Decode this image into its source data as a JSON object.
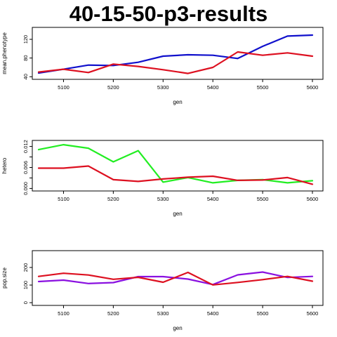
{
  "page": {
    "title": "40-15-50-p3-results"
  },
  "chart_data": [
    {
      "type": "line",
      "xlabel": "gen",
      "ylabel": "mean.phenotype",
      "xlim": [
        5050,
        5600
      ],
      "ylim": [
        40,
        140
      ],
      "x_ticks": [
        5100,
        5200,
        5300,
        5400,
        5500,
        5600
      ],
      "y_ticks": [
        40,
        80,
        120
      ],
      "x": [
        5050,
        5100,
        5150,
        5200,
        5250,
        5300,
        5350,
        5400,
        5450,
        5500,
        5550,
        5600
      ],
      "series": [
        {
          "color": "#1010cc",
          "values": [
            48,
            56,
            65,
            64,
            71,
            84,
            87,
            86,
            79,
            105,
            127,
            129
          ]
        },
        {
          "color": "#dd1020",
          "values": [
            50,
            56,
            49,
            67,
            62,
            55,
            47,
            60,
            93,
            86,
            91,
            84
          ]
        }
      ]
    },
    {
      "type": "line",
      "xlabel": "gen",
      "ylabel": "hetero",
      "xlim": [
        5050,
        5600
      ],
      "ylim": [
        0,
        0.013
      ],
      "x_ticks": [
        5100,
        5200,
        5300,
        5400,
        5500,
        5600
      ],
      "y_ticks": [
        0.0,
        0.003,
        0.006,
        0.009,
        0.012
      ],
      "y_tick_labels": [
        "0.000",
        "0.006",
        "0.012"
      ],
      "x": [
        5050,
        5100,
        5150,
        5200,
        5250,
        5300,
        5350,
        5400,
        5450,
        5500,
        5550,
        5600
      ],
      "series": [
        {
          "color": "#22ee22",
          "values": [
            0.0111,
            0.0125,
            0.0115,
            0.0076,
            0.0108,
            0.0018,
            0.0031,
            0.0016,
            0.0023,
            0.0025,
            0.0016,
            0.0022
          ]
        },
        {
          "color": "#dd1020",
          "values": [
            0.0058,
            0.0058,
            0.0064,
            0.0025,
            0.002,
            0.0027,
            0.0032,
            0.0035,
            0.0023,
            0.0024,
            0.0031,
            0.0012
          ]
        }
      ]
    },
    {
      "type": "line",
      "xlabel": "gen",
      "ylabel": "pop.size",
      "xlim": [
        5050,
        5600
      ],
      "ylim": [
        0,
        280
      ],
      "x_ticks": [
        5100,
        5200,
        5300,
        5400,
        5500,
        5600
      ],
      "y_ticks": [
        0,
        100,
        200
      ],
      "x": [
        5050,
        5100,
        5150,
        5200,
        5250,
        5300,
        5350,
        5400,
        5450,
        5500,
        5550,
        5600
      ],
      "series": [
        {
          "color": "#8a10e0",
          "values": [
            120,
            128,
            109,
            114,
            148,
            148,
            134,
            103,
            158,
            174,
            143,
            149
          ]
        },
        {
          "color": "#dd1020",
          "values": [
            149,
            167,
            157,
            133,
            144,
            116,
            172,
            101,
            115,
            131,
            149,
            122
          ]
        }
      ]
    }
  ]
}
